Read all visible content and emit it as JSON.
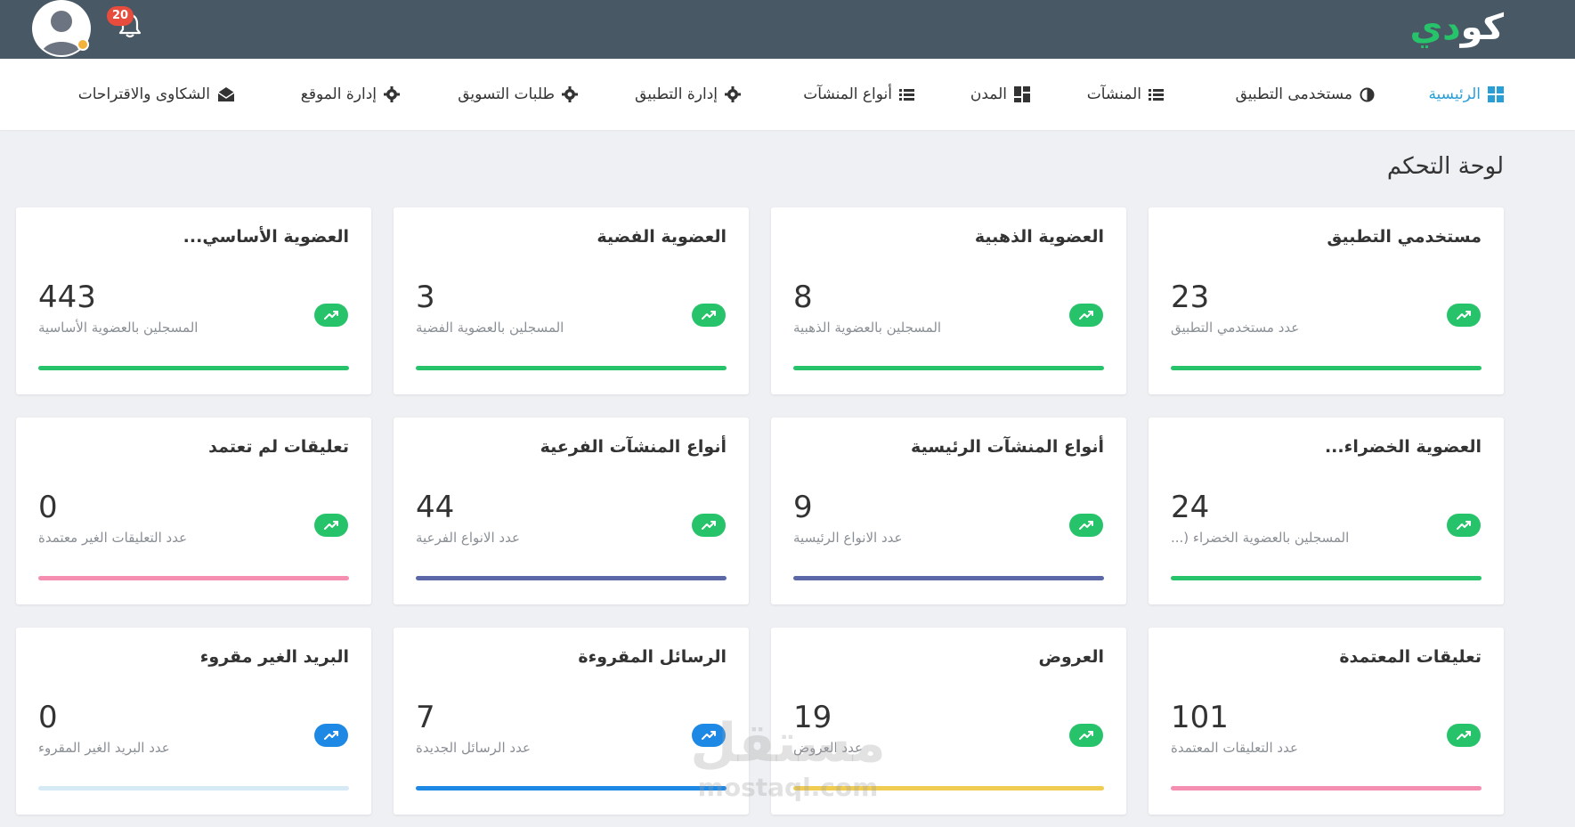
{
  "header": {
    "logo_main": "كو",
    "logo_accent": "دي",
    "notifications_count": "20"
  },
  "nav": {
    "items": [
      {
        "label": "الرئيسية",
        "icon": "dashboard-grid-icon"
      },
      {
        "label": "مستخدمى التطبيق",
        "icon": "half-circle-icon"
      },
      {
        "label": "المنشآت",
        "icon": "list-icon"
      },
      {
        "label": "المدن",
        "icon": "grid-blocks-icon"
      },
      {
        "label": "أنواع المنشآت",
        "icon": "list-icon"
      },
      {
        "label": "إدارة التطبيق",
        "icon": "gear-icon"
      },
      {
        "label": "طلبات التسويق",
        "icon": "gear-icon"
      },
      {
        "label": "إدارة الموقع",
        "icon": "gear-icon"
      },
      {
        "label": "الشكاوى والاقتراحات",
        "icon": "envelope-open-icon"
      }
    ]
  },
  "page": {
    "title": "لوحة التحكم"
  },
  "cards": [
    {
      "title": "مستخدمي التطبيق",
      "value": "23",
      "label": "عدد مستخدمي التطبيق",
      "trend_color": "#27c36b",
      "bar_color": "#27c36b"
    },
    {
      "title": "العضوية الذهبية",
      "value": "8",
      "label": "المسجلين بالعضوية الذهبية",
      "trend_color": "#27c36b",
      "bar_color": "#27c36b"
    },
    {
      "title": "العضوية الفضية",
      "value": "3",
      "label": "المسجلين بالعضوية الفضية",
      "trend_color": "#27c36b",
      "bar_color": "#27c36b"
    },
    {
      "title": "العضوية الأساسي...",
      "value": "443",
      "label": "المسجلين بالعضوية الأساسية",
      "trend_color": "#27c36b",
      "bar_color": "#27c36b"
    },
    {
      "title": "العضوية الخضراء...",
      "value": "24",
      "label": "المسجلين بالعضوية الخضراء (...",
      "trend_color": "#27c36b",
      "bar_color": "#27c36b"
    },
    {
      "title": "أنواع المنشآت الرئيسية",
      "value": "9",
      "label": "عدد الانواع الرئيسية",
      "trend_color": "#27c36b",
      "bar_color": "#5c67a8"
    },
    {
      "title": "أنواع المنشآت الفرعية",
      "value": "44",
      "label": "عدد الانواع الفرعية",
      "trend_color": "#27c36b",
      "bar_color": "#5c67a8"
    },
    {
      "title": "تعليقات لم تعتمد",
      "value": "0",
      "label": "عدد التعليقات الغير معتمدة",
      "trend_color": "#27c36b",
      "bar_color": "#f48fb1"
    },
    {
      "title": "تعليقات المعتمدة",
      "value": "101",
      "label": "عدد التعليقات المعتمدة",
      "trend_color": "#27c36b",
      "bar_color": "#f48fb1"
    },
    {
      "title": "العروض",
      "value": "19",
      "label": "عدد العروض",
      "trend_color": "#27c36b",
      "bar_color": "#f0cd52"
    },
    {
      "title": "الرسائل المقروءة",
      "value": "7",
      "label": "عدد الرسائل الجديدة",
      "trend_color": "#1e88e5",
      "bar_color": "#1e88e5"
    },
    {
      "title": "البريد الغير مقروء",
      "value": "0",
      "label": "عدد البريد الغير المقروء",
      "trend_color": "#1e88e5",
      "bar_color": "#d6eaf5"
    }
  ],
  "watermark": {
    "text_ar": "مستقل",
    "text_en": "mostaql.com"
  }
}
